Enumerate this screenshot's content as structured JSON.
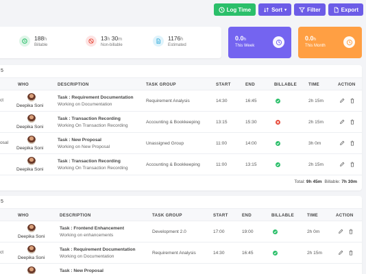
{
  "toolbar": {
    "log_time": "Log Time",
    "sort": "Sort",
    "filter": "Filter",
    "export": "Export"
  },
  "stats": {
    "billable": {
      "value": "188",
      "unit": "h",
      "label": "Billable"
    },
    "non_billable": {
      "value": "13",
      "unit_h": "h",
      "value2": "30",
      "unit_m": "m",
      "label": "Non-billable"
    },
    "estimated": {
      "value": "1176",
      "unit": "h",
      "label": "Estimated"
    },
    "this_week": {
      "value": "0.0",
      "unit": "h",
      "label": "This Week"
    },
    "this_month": {
      "value": "0.0",
      "unit": "h",
      "label": "This Month"
    }
  },
  "colors": {
    "this_week": "#7464f0",
    "this_month": "#ff9f43",
    "billable_yes": "#2bbf6a",
    "billable_no": "#e74c3c"
  },
  "columns": {
    "who": "WHO",
    "description": "DESCRIPTION",
    "task_group": "TASK GROUP",
    "start": "START",
    "end": "END",
    "billable": "BILLABLE",
    "time": "TIME",
    "action": "ACTION"
  },
  "section1": {
    "head": "5",
    "rows": [
      {
        "lead": "ct",
        "who": "Deepika Soni",
        "title": "Task : Requirement Documentation",
        "sub": "Working on Documentation",
        "group": "Requirement Analysis",
        "start": "14:30",
        "end": "16:45",
        "billable": true,
        "time": "2h 15m"
      },
      {
        "lead": "",
        "who": "Deepika Soni",
        "title": "Task : Transaction Recording",
        "sub": "Working On Transaction Recording",
        "group": "Accounting & Bookkeeping",
        "start": "13:15",
        "end": "15:30",
        "billable": false,
        "time": "2h 15m"
      },
      {
        "lead": "osal",
        "who": "Deepika Soni",
        "title": "Task : New Proposal",
        "sub": "Working on New Proposal",
        "group": "Unassigned Group",
        "start": "11:00",
        "end": "14:00",
        "billable": true,
        "time": "3h 0m"
      },
      {
        "lead": "",
        "who": "Deepika Soni",
        "title": "Task : Transaction Recording",
        "sub": "Working On Transaction Recording",
        "group": "Accounting & Bookkeeping",
        "start": "11:00",
        "end": "13:15",
        "billable": true,
        "time": "2h 15m"
      }
    ],
    "total_label": "Total:",
    "total_value": "9h 45m",
    "billable_label": "Billable:",
    "billable_value": "7h 30m"
  },
  "section2": {
    "head": "5",
    "rows": [
      {
        "lead": "",
        "who": "Deepika Soni",
        "title": "Task : Frontend Enhancement",
        "sub": "Working on enhancements",
        "group": "Development 2.0",
        "start": "17:00",
        "end": "19:00",
        "billable": true,
        "time": "2h 0m"
      },
      {
        "lead": "ct",
        "who": "Deepika Soni",
        "title": "Task : Requirement Documentation",
        "sub": "Working on Documentation",
        "group": "Requirement Analysis",
        "start": "14:30",
        "end": "16:45",
        "billable": true,
        "time": "2h 15m"
      },
      {
        "lead": "",
        "who": "",
        "title": "Task : New Proposal",
        "sub": "",
        "group": "",
        "start": "",
        "end": "",
        "billable": null,
        "time": ""
      }
    ]
  }
}
